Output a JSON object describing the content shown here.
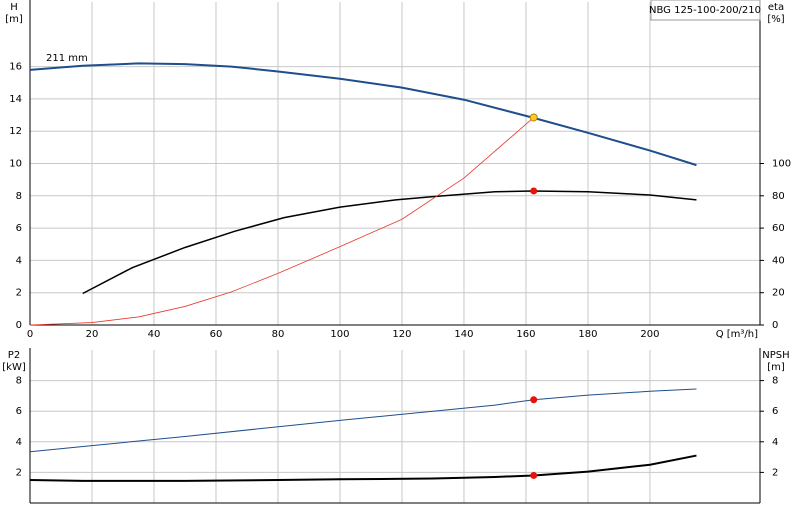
{
  "chart_data": [
    {
      "type": "line",
      "title": "NBG 125-100-200/210",
      "annotation": "211 mm",
      "ylabel": "H",
      "yunit": "[m]",
      "y2label": "eta",
      "y2unit": "[%]",
      "xlabel": "Q [m³/h]",
      "xlim": [
        0,
        235.5
      ],
      "xticks": [
        0,
        20,
        40,
        60,
        80,
        100,
        120,
        140,
        160,
        180,
        200
      ],
      "ylim": [
        0,
        20
      ],
      "yticks": [
        0,
        2,
        4,
        6,
        8,
        10,
        12,
        14,
        16
      ],
      "y2lim": [
        0,
        200
      ],
      "y2ticks": [
        0,
        20,
        40,
        60,
        80,
        100
      ],
      "grid": true,
      "series": [
        {
          "color": "#1f4e8c",
          "width": 2,
          "x": [
            0,
            17,
            35,
            50,
            65,
            80,
            100,
            120,
            140,
            162,
            180,
            200,
            215
          ],
          "values": [
            15.8,
            16.05,
            16.2,
            16.15,
            16.0,
            15.7,
            15.25,
            14.7,
            13.95,
            12.85,
            11.9,
            10.8,
            9.9
          ]
        },
        {
          "color": "#000000",
          "width": 1.5,
          "axis": "y2",
          "x": [
            17,
            33,
            50,
            66,
            82,
            100,
            118,
            130,
            150,
            162,
            180,
            200,
            215
          ],
          "values": [
            19.5,
            35.5,
            48,
            58,
            66.5,
            73,
            77.5,
            79.5,
            82.5,
            83,
            82.5,
            80.5,
            77.5
          ]
        },
        {
          "color": "#e8382c",
          "width": 0.8,
          "x": [
            0,
            20,
            35,
            50,
            65,
            80,
            100,
            120,
            140,
            162.5
          ],
          "values": [
            0,
            0.15,
            0.5,
            1.15,
            2.05,
            3.2,
            4.85,
            6.55,
            9.1,
            12.85
          ]
        }
      ],
      "points": [
        {
          "x": 162.5,
          "y": 12.85,
          "color": "#ffd21f"
        },
        {
          "x": 162.5,
          "y": 83,
          "color": "#e8120c",
          "axis": "y2"
        }
      ]
    },
    {
      "type": "line",
      "ylabel": "P2",
      "yunit": "[kW]",
      "y2label": "NPSH",
      "y2unit": "[m]",
      "xlim": [
        0,
        235.5
      ],
      "xticks": [
        0,
        20,
        40,
        60,
        80,
        100,
        120,
        140,
        160,
        180,
        200
      ],
      "ylim": [
        0,
        10
      ],
      "yticks": [
        2,
        4,
        6,
        8
      ],
      "y2lim": [
        0,
        10
      ],
      "y2ticks": [
        2,
        4,
        6,
        8
      ],
      "grid": true,
      "series": [
        {
          "color": "#1f4e8c",
          "width": 1,
          "x": [
            0,
            20,
            50,
            100,
            150,
            162.5,
            180,
            200,
            215
          ],
          "values": [
            3.35,
            3.75,
            4.35,
            5.4,
            6.4,
            6.75,
            7.05,
            7.3,
            7.45
          ]
        },
        {
          "color": "#000000",
          "width": 2,
          "axis": "y2",
          "x": [
            0,
            17,
            50,
            80,
            100,
            130,
            150,
            162.5,
            180,
            200,
            215
          ],
          "values": [
            1.5,
            1.45,
            1.45,
            1.5,
            1.55,
            1.6,
            1.7,
            1.8,
            2.05,
            2.5,
            3.1
          ]
        }
      ],
      "points": [
        {
          "x": 162.5,
          "y": 6.75,
          "color": "#e8120c"
        },
        {
          "x": 162.5,
          "y": 1.8,
          "color": "#e8120c",
          "axis": "y2"
        }
      ]
    }
  ]
}
